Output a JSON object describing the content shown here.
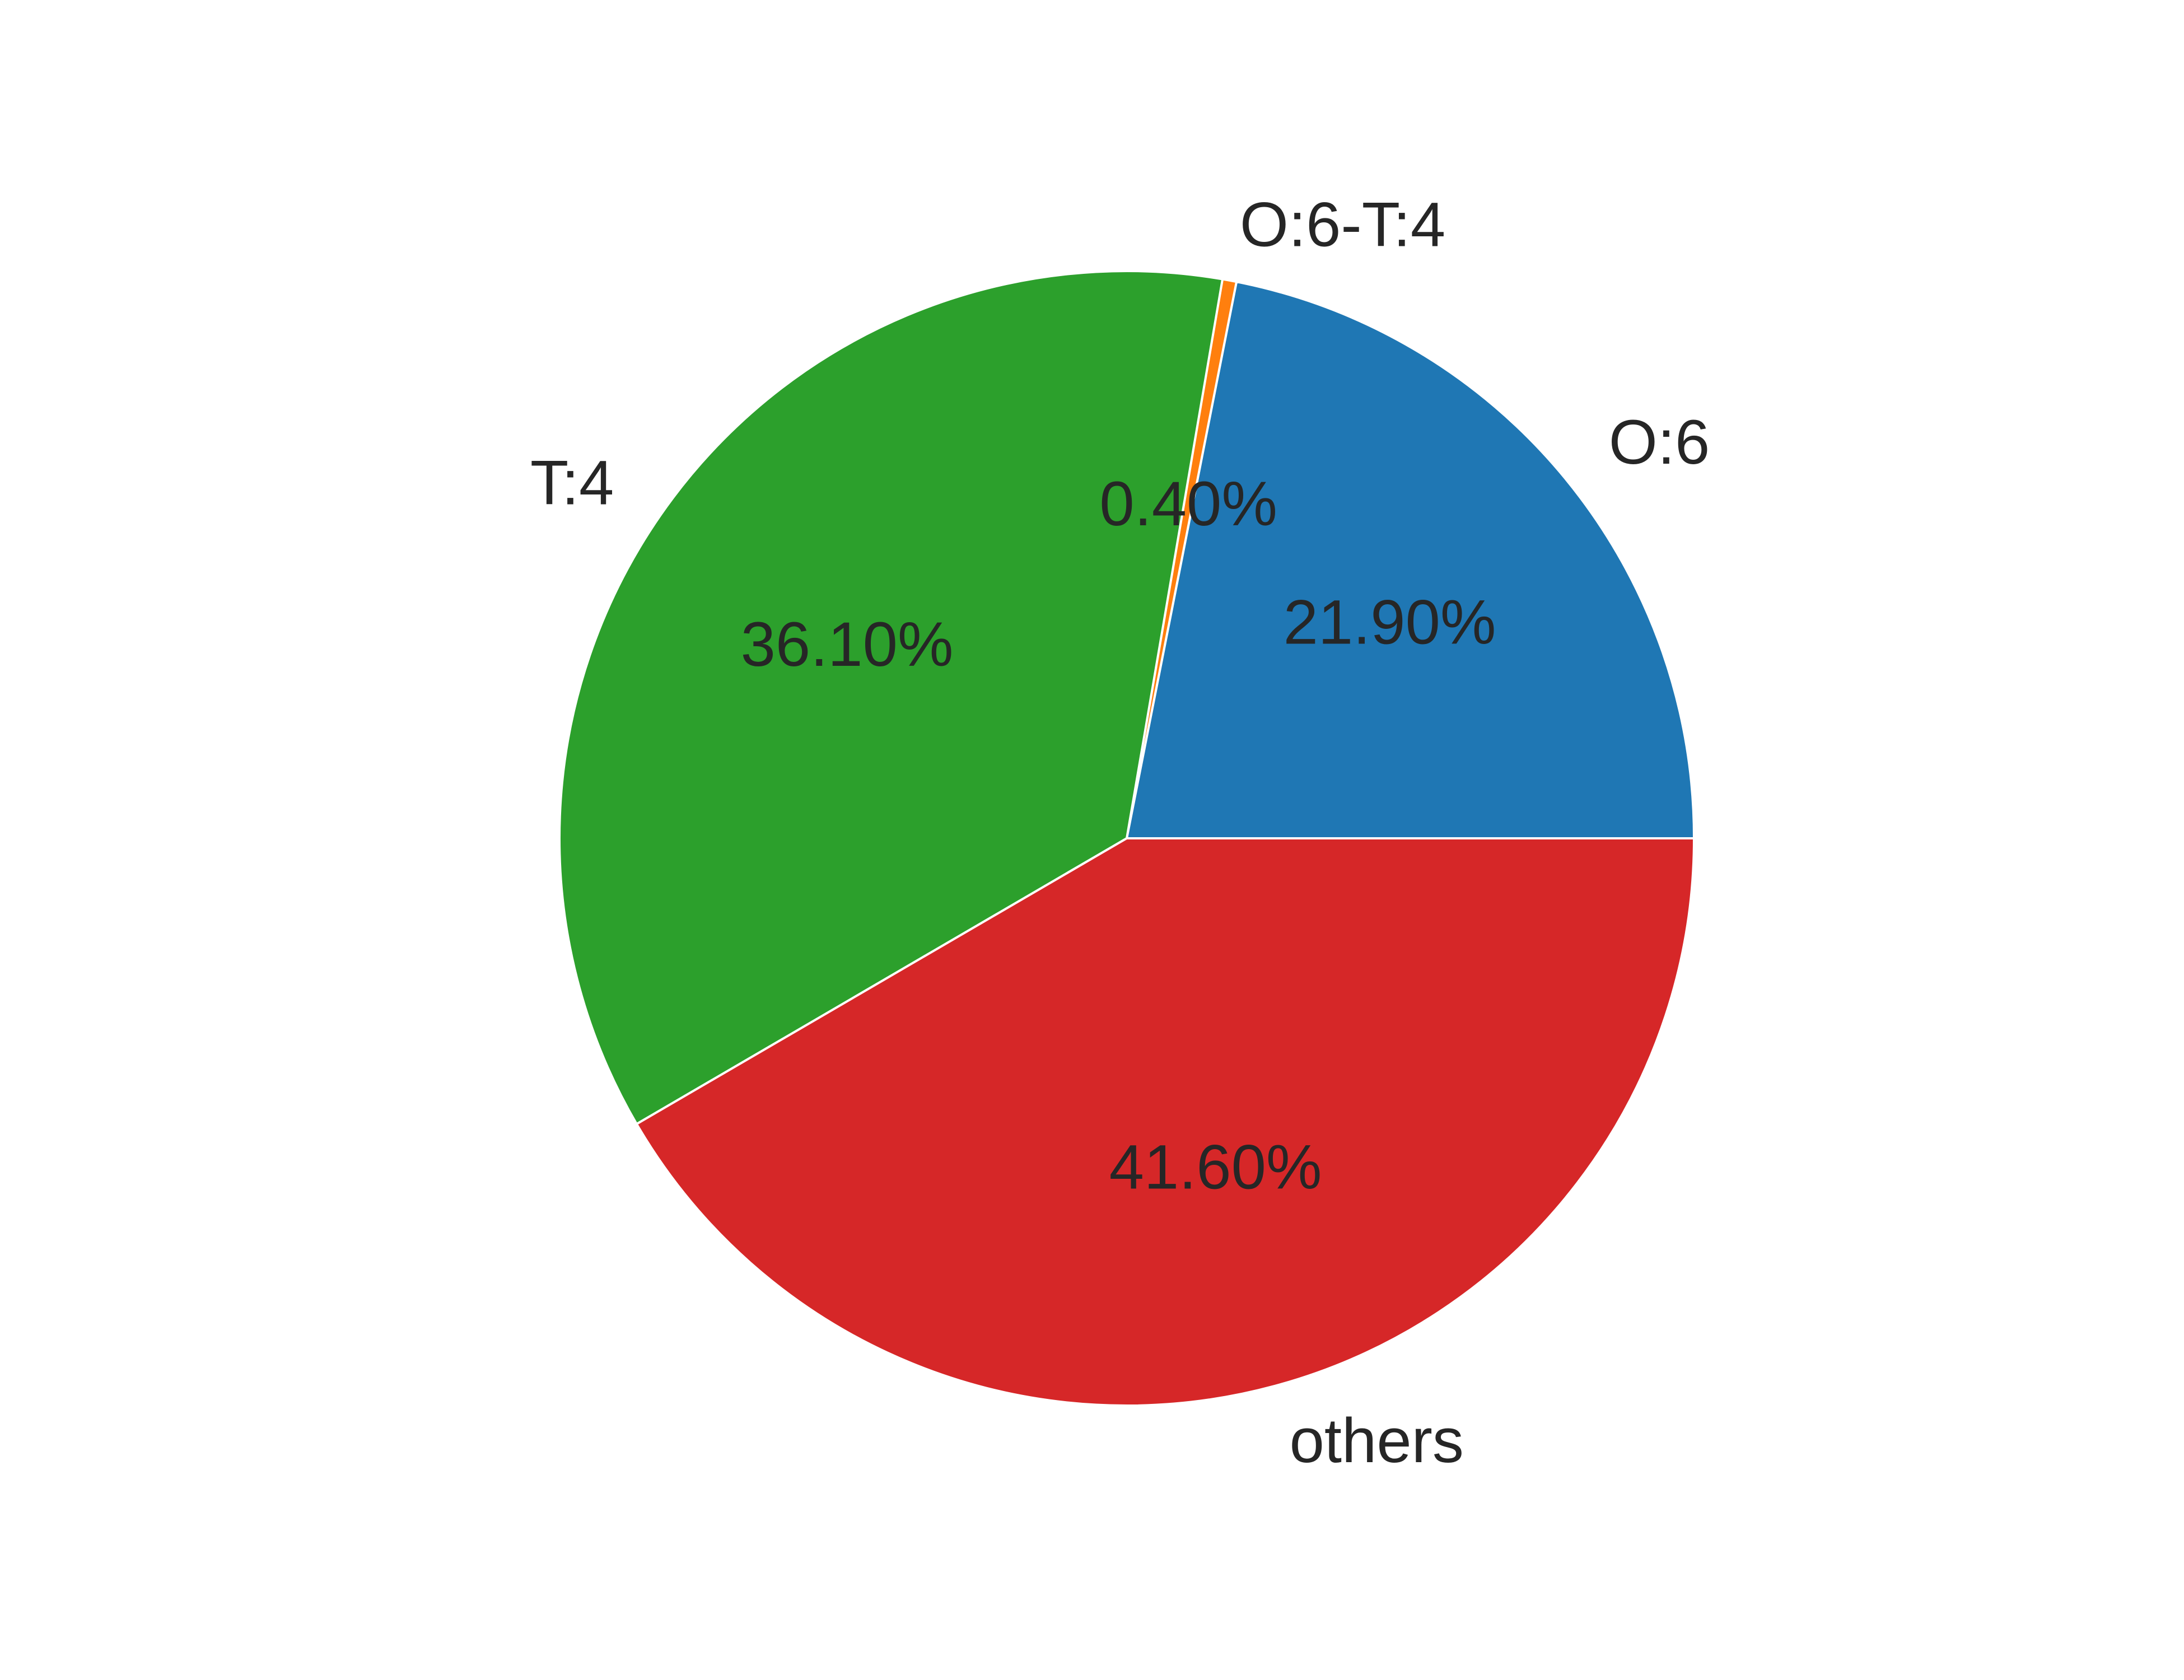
{
  "chart_data": {
    "type": "pie",
    "labels": [
      "O:6",
      "O:6-T:4",
      "T:4",
      "others"
    ],
    "values": [
      21.9,
      0.4,
      36.1,
      41.6
    ],
    "pct_labels": [
      "21.90%",
      "0.40%",
      "36.10%",
      "41.60%"
    ],
    "colors": [
      "#1f77b4",
      "#ff7f0e",
      "#2ca02c",
      "#d62728"
    ],
    "start_angle_deg": 0,
    "direction": "counterclockwise"
  }
}
